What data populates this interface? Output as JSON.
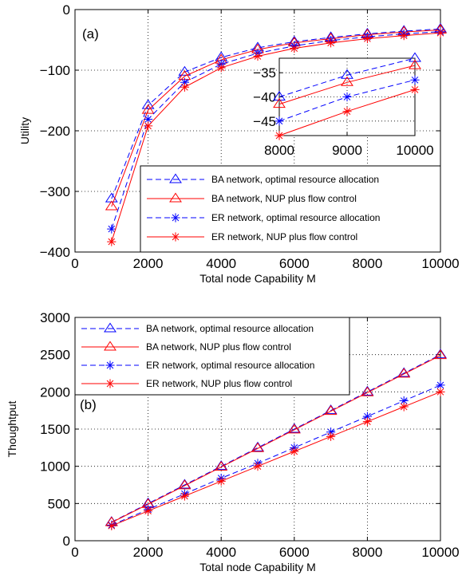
{
  "colors": {
    "blue": "#0000ff",
    "red": "#ff0000",
    "frame": "#000000",
    "grid": "#000000"
  },
  "chart_data": [
    {
      "type": "line",
      "panel_label": "(a)",
      "xlabel": "Total node Capability M",
      "ylabel": "Utility",
      "xlim": [
        0,
        10000
      ],
      "ylim": [
        -400,
        0
      ],
      "xticks": [
        0,
        2000,
        4000,
        6000,
        8000,
        10000
      ],
      "yticks": [
        0,
        -100,
        -200,
        -300,
        -400
      ],
      "xtick_labels": [
        "0",
        "2000",
        "4000",
        "6000",
        "8000",
        "10000"
      ],
      "ytick_labels": [
        "0",
        "−100",
        "−200",
        "−300",
        "−400"
      ],
      "grid": true,
      "legend": "lower-right",
      "x": [
        1000,
        2000,
        3000,
        4000,
        5000,
        6000,
        7000,
        8000,
        9000,
        10000
      ],
      "series": [
        {
          "name": "BA network, optimal resource allocation",
          "color": "blue",
          "style": "dashed",
          "marker": "triangle",
          "values": [
            -312,
            -158,
            -103,
            -79,
            -63,
            -53,
            -46,
            -40,
            -35.5,
            -32
          ]
        },
        {
          "name": "BA network, NUP plus flow control",
          "color": "red",
          "style": "solid",
          "marker": "triangle",
          "values": [
            -325,
            -166,
            -110,
            -83,
            -66,
            -55,
            -48,
            -41.5,
            -37,
            -33.5
          ]
        },
        {
          "name": "ER network, optimal resource allocation",
          "color": "blue",
          "style": "dashed",
          "marker": "star",
          "values": [
            -362,
            -181,
            -120,
            -90,
            -72,
            -60,
            -51,
            -45,
            -40,
            -36.5
          ]
        },
        {
          "name": "ER network, NUP plus flow control",
          "color": "red",
          "style": "solid",
          "marker": "star",
          "values": [
            -383,
            -192,
            -128,
            -96,
            -77,
            -64,
            -55,
            -48,
            -43,
            -38.5
          ]
        }
      ],
      "inset": {
        "xlim": [
          8000,
          10000
        ],
        "ylim": [
          -48,
          -32
        ],
        "xticks": [
          8000,
          9000,
          10000
        ],
        "yticks": [
          -35,
          -40,
          -45
        ],
        "xtick_labels": [
          "8000",
          "9000",
          "10000"
        ],
        "ytick_labels": [
          "−35",
          "−40",
          "−45"
        ]
      }
    },
    {
      "type": "line",
      "panel_label": "(b)",
      "xlabel": "Total node Capability M",
      "ylabel": "Thoughtput",
      "xlim": [
        0,
        10000
      ],
      "ylim": [
        0,
        3000
      ],
      "xticks": [
        0,
        2000,
        4000,
        6000,
        8000,
        10000
      ],
      "yticks": [
        0,
        500,
        1000,
        1500,
        2000,
        2500,
        3000
      ],
      "xtick_labels": [
        "0",
        "2000",
        "4000",
        "6000",
        "8000",
        "10000"
      ],
      "ytick_labels": [
        "0",
        "500",
        "1000",
        "1500",
        "2000",
        "2500",
        "3000"
      ],
      "grid": true,
      "legend": "top-left",
      "x": [
        1000,
        2000,
        3000,
        4000,
        5000,
        6000,
        7000,
        8000,
        9000,
        10000
      ],
      "series": [
        {
          "name": "BA network, optimal resource allocation",
          "color": "blue",
          "style": "dashed",
          "marker": "triangle",
          "values": [
            250,
            500,
            750,
            1000,
            1250,
            1500,
            1750,
            2000,
            2250,
            2500
          ]
        },
        {
          "name": "BA network, NUP plus flow control",
          "color": "red",
          "style": "solid",
          "marker": "triangle",
          "values": [
            245,
            490,
            740,
            990,
            1240,
            1490,
            1740,
            1990,
            2240,
            2490
          ]
        },
        {
          "name": "ER network, optimal resource allocation",
          "color": "blue",
          "style": "dashed",
          "marker": "star",
          "values": [
            210,
            420,
            630,
            840,
            1040,
            1250,
            1460,
            1670,
            1880,
            2090
          ]
        },
        {
          "name": "ER network, NUP plus flow control",
          "color": "red",
          "style": "solid",
          "marker": "star",
          "values": [
            200,
            400,
            600,
            800,
            1000,
            1200,
            1400,
            1600,
            1800,
            2000
          ]
        }
      ]
    }
  ]
}
